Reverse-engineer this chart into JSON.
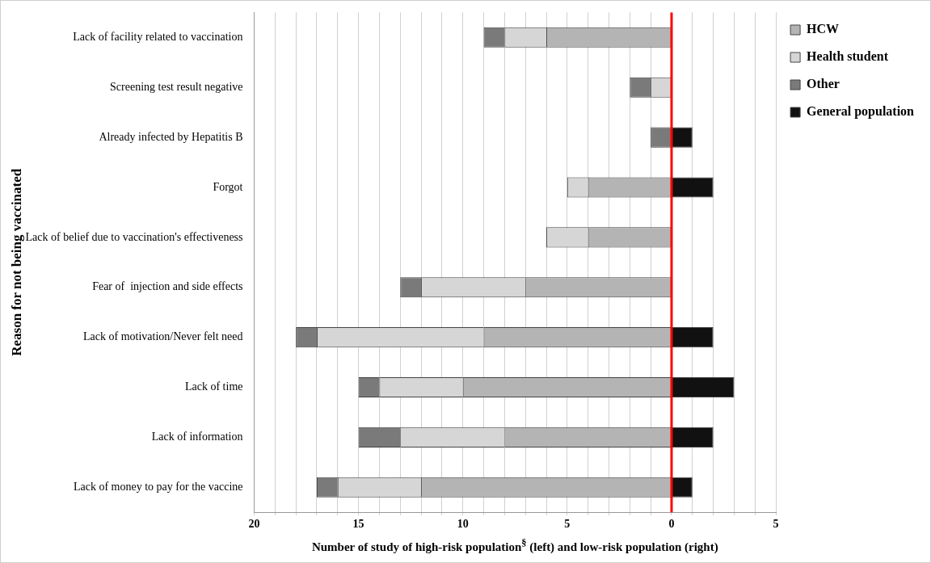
{
  "chart_data": {
    "type": "bar",
    "orientation": "horizontal",
    "stacked": true,
    "ylabel": "Reason for not being vaccinated",
    "xlabel": "Number of study of high-risk population$^{§}$ (left) and low-risk population (right)",
    "categories": [
      "Lack of facility related to vaccination",
      "Screening test result negative",
      "Already infected by Hepatitis B",
      "Forgot",
      "Lack of belief due to vaccination's effectiveness",
      "Fear of  injection and side effects",
      "Lack of motivation/Never felt need",
      "Lack of time",
      "Lack of information",
      "Lack of money to pay for the vaccine"
    ],
    "series": [
      {
        "name": "HCW",
        "color": "#b4b4b4",
        "values": [
          -6,
          0,
          0,
          -4,
          -4,
          -7,
          -9,
          -10,
          -8,
          -12
        ]
      },
      {
        "name": "Health student",
        "color": "#d6d6d6",
        "values": [
          -2,
          -1,
          0,
          -1,
          -2,
          -5,
          -8,
          -4,
          -5,
          -4
        ]
      },
      {
        "name": "Other",
        "color": "#7a7a7a",
        "values": [
          -1,
          -1,
          -1,
          0,
          0,
          -1,
          -1,
          -1,
          -2,
          -1
        ]
      },
      {
        "name": "General population",
        "color": "#111111",
        "values": [
          0,
          0,
          1,
          2,
          0,
          0,
          2,
          3,
          2,
          1
        ]
      }
    ],
    "xlim": [
      -20,
      5
    ],
    "xticks": [
      {
        "value": -20,
        "label": "20"
      },
      {
        "value": -19,
        "label": null
      },
      {
        "value": -18,
        "label": null
      },
      {
        "value": -17,
        "label": null
      },
      {
        "value": -16,
        "label": null
      },
      {
        "value": -15,
        "label": "15"
      },
      {
        "value": -14,
        "label": null
      },
      {
        "value": -13,
        "label": null
      },
      {
        "value": -12,
        "label": null
      },
      {
        "value": -11,
        "label": null
      },
      {
        "value": -10,
        "label": "10"
      },
      {
        "value": -9,
        "label": null
      },
      {
        "value": -8,
        "label": null
      },
      {
        "value": -7,
        "label": null
      },
      {
        "value": -6,
        "label": null
      },
      {
        "value": -5,
        "label": "5"
      },
      {
        "value": -4,
        "label": null
      },
      {
        "value": -3,
        "label": null
      },
      {
        "value": -2,
        "label": null
      },
      {
        "value": -1,
        "label": null
      },
      0,
      {
        "value": 1,
        "label": null
      },
      {
        "value": 2,
        "label": null
      },
      {
        "value": 3,
        "label": null
      },
      {
        "value": 4,
        "label": null
      },
      5
    ],
    "ref_lines": [
      {
        "axis": "x",
        "value": 0,
        "color": "#ff0000"
      }
    ],
    "grid": "x",
    "legend": "right"
  }
}
